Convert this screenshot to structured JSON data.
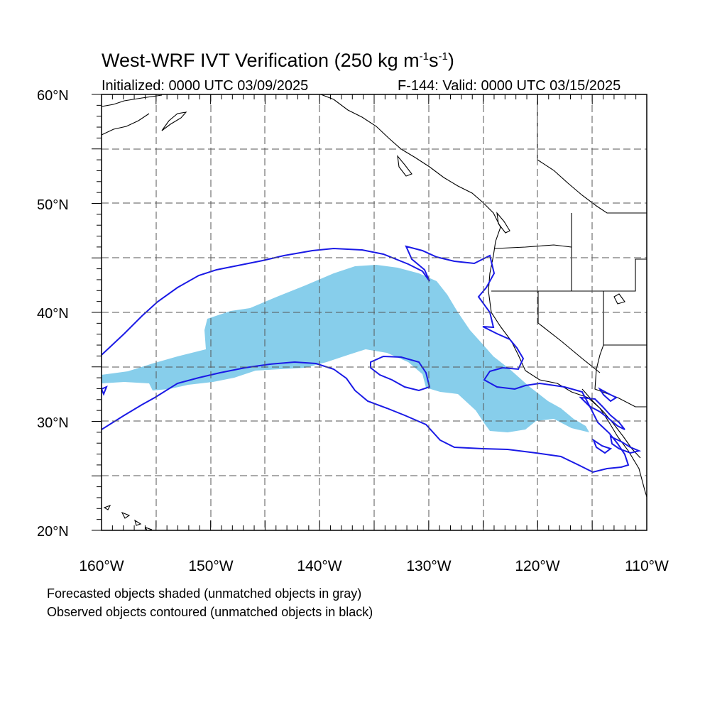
{
  "figure": {
    "title_main": "West-WRF IVT Verification (250 kg m",
    "title_sup1": "-1",
    "title_mid": "s",
    "title_sup2": "-1",
    "title_end": ")",
    "initialized": "Initialized: 0000 UTC 03/09/2025",
    "valid": "F-144: Valid: 0000 UTC 03/15/2025"
  },
  "axes": {
    "lat_labels": [
      "60°N",
      "50°N",
      "40°N",
      "30°N",
      "20°N"
    ],
    "lon_labels": [
      "160°W",
      "150°W",
      "140°W",
      "130°W",
      "120°W",
      "110°W"
    ],
    "lat_range": [
      20,
      60
    ],
    "lon_range": [
      -160,
      -110
    ],
    "grid": "dashed every 5 degrees"
  },
  "legend": {
    "line1": "Forecasted objects shaded (unmatched objects in gray)",
    "line2": "Observed objects contoured (unmatched objects in black)"
  },
  "colors": {
    "forecast_fill": "#87ceeb",
    "observed_contour": "#1a1ae6",
    "coastline": "#000000",
    "grid": "#555555"
  }
}
